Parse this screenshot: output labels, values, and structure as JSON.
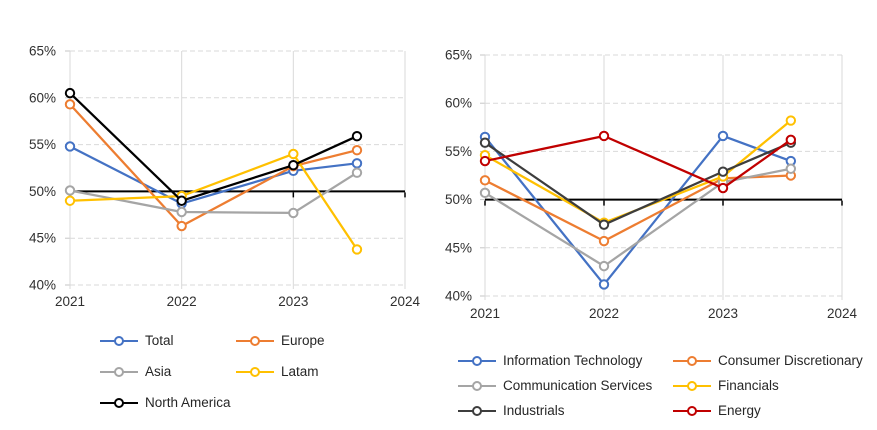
{
  "page": {
    "background": "#ffffff"
  },
  "style": {
    "gridline_color": "#D9D9D9",
    "tick_color": "#C6C6C6",
    "axis_line_color": "#000000",
    "label_color": "#303030"
  },
  "chart_data": [
    {
      "id": "by-region",
      "type": "line",
      "title": "",
      "xlabel": "",
      "ylabel": "",
      "x": [
        2021,
        2022,
        2023,
        2023.57
      ],
      "x_axis_ticks": [
        "2021",
        "2022",
        "2023",
        "2024"
      ],
      "y_axis_ticks": [
        "65%",
        "60%",
        "55%",
        "50%",
        "45%",
        "40%"
      ],
      "ylim": [
        40,
        65
      ],
      "y_step": 5,
      "axis_cross_y": 50,
      "grid": "on",
      "legend_position": "bottom",
      "marker": "open-circle",
      "series": [
        {
          "name": "Total",
          "color": "#4472C4",
          "values": [
            54.8,
            48.7,
            52.2,
            53.0
          ]
        },
        {
          "name": "Europe",
          "color": "#ED7D31",
          "values": [
            59.3,
            46.3,
            52.7,
            54.4
          ]
        },
        {
          "name": "Asia",
          "color": "#A5A5A5",
          "values": [
            50.1,
            47.8,
            47.7,
            52.0
          ]
        },
        {
          "name": "Latam",
          "color": "#FFC000",
          "values": [
            49.0,
            49.5,
            54.0,
            43.8
          ]
        },
        {
          "name": "North America",
          "color": "#000000",
          "values": [
            60.5,
            49.0,
            52.8,
            55.9
          ]
        }
      ]
    },
    {
      "id": "by-sector",
      "type": "line",
      "title": "",
      "xlabel": "",
      "ylabel": "",
      "x": [
        2021,
        2022,
        2023,
        2023.57
      ],
      "x_axis_ticks": [
        "2021",
        "2022",
        "2023",
        "2024"
      ],
      "y_axis_ticks": [
        "65%",
        "60%",
        "55%",
        "50%",
        "45%",
        "40%"
      ],
      "ylim": [
        40,
        65
      ],
      "y_step": 5,
      "axis_cross_y": 50,
      "grid": "on",
      "legend_position": "bottom",
      "marker": "open-circle",
      "series": [
        {
          "name": "Information Technology",
          "color": "#4472C4",
          "values": [
            56.5,
            41.2,
            56.6,
            54.0
          ]
        },
        {
          "name": "Consumer Discretionary",
          "color": "#ED7D31",
          "values": [
            52.0,
            45.7,
            52.2,
            52.5
          ]
        },
        {
          "name": "Communication Services",
          "color": "#A5A5A5",
          "values": [
            50.7,
            43.1,
            51.8,
            53.2
          ]
        },
        {
          "name": "Financials",
          "color": "#FFC000",
          "values": [
            54.6,
            47.6,
            52.4,
            58.2
          ]
        },
        {
          "name": "Industrials",
          "color": "#3D3D3D",
          "values": [
            55.9,
            47.4,
            52.9,
            55.9
          ]
        },
        {
          "name": "Energy",
          "color": "#C00000",
          "values": [
            54.0,
            56.6,
            51.2,
            56.2
          ]
        }
      ]
    }
  ]
}
